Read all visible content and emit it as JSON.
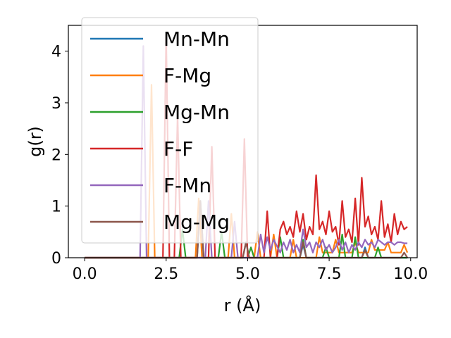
{
  "chart_data": {
    "type": "line",
    "xlabel": "r (Å)",
    "ylabel": "g(r)",
    "xlim": [
      -0.5,
      10.2
    ],
    "ylim": [
      0,
      4.5
    ],
    "x_ticks": [
      0.0,
      2.5,
      5.0,
      7.5,
      10.0
    ],
    "x_tick_labels": [
      "0.0",
      "2.5",
      "5.0",
      "7.5",
      "10.0"
    ],
    "y_ticks": [
      0,
      1,
      2,
      3,
      4
    ],
    "y_tick_labels": [
      "0",
      "1",
      "2",
      "3",
      "4"
    ],
    "grid": false,
    "legend_position": "upper left",
    "series": [
      {
        "name": "Mn-Mn",
        "color": "#1f77b4",
        "x": [
          0.0,
          3.45,
          3.55,
          3.65,
          4.85,
          4.95,
          5.05,
          6.6,
          6.7,
          6.8,
          8.5,
          8.6,
          8.7,
          9.9
        ],
        "y": [
          0,
          0,
          1.1,
          0,
          0,
          0.3,
          0,
          0,
          0.25,
          0,
          0,
          0.2,
          0,
          0
        ]
      },
      {
        "name": "F-Mg",
        "color": "#ff7f0e",
        "x": [
          0.0,
          1.95,
          2.05,
          2.15,
          3.4,
          3.5,
          3.6,
          4.4,
          4.5,
          4.6,
          5.2,
          5.3,
          5.4,
          5.7,
          5.8,
          5.9,
          6.3,
          6.4,
          6.5,
          7.1,
          7.2,
          7.3,
          7.6,
          7.7,
          7.8,
          8.2,
          8.3,
          8.4,
          8.7,
          8.8,
          8.9,
          9.2,
          9.3,
          9.4,
          9.7,
          9.8,
          9.9
        ],
        "y": [
          0,
          0,
          3.35,
          0,
          0,
          1.15,
          0,
          0,
          0.85,
          0,
          0,
          0.5,
          0,
          0,
          0.45,
          0,
          0,
          0.35,
          0,
          0,
          0.4,
          0.1,
          0.1,
          0.35,
          0.1,
          0.1,
          0.3,
          0.1,
          0.1,
          0.35,
          0.15,
          0.15,
          0.3,
          0.1,
          0.1,
          0.25,
          0.1
        ]
      },
      {
        "name": "Mg-Mn",
        "color": "#2ca02c",
        "x": [
          0.0,
          2.9,
          3.0,
          3.1,
          4.1,
          4.2,
          4.3,
          5.0,
          5.1,
          5.2,
          5.9,
          6.0,
          6.1,
          6.6,
          6.7,
          6.8,
          7.3,
          7.4,
          7.5,
          7.8,
          7.9,
          8.0,
          8.2,
          8.3,
          8.4,
          8.9,
          9.0,
          9.1,
          9.9
        ],
        "y": [
          0,
          0,
          0.55,
          0,
          0,
          0.5,
          0,
          0,
          0.2,
          0,
          0,
          0.4,
          0,
          0,
          0.35,
          0,
          0,
          0.2,
          0,
          0,
          0.45,
          0,
          0,
          0.4,
          0,
          0,
          0.2,
          0,
          0
        ]
      },
      {
        "name": "F-F",
        "color": "#d62728",
        "x": [
          0.0,
          2.4,
          2.5,
          2.6,
          2.75,
          2.85,
          2.95,
          3.8,
          3.9,
          4.0,
          4.8,
          4.9,
          5.0,
          5.5,
          5.6,
          5.7,
          5.9,
          6.0,
          6.1,
          6.2,
          6.3,
          6.4,
          6.5,
          6.6,
          6.7,
          6.8,
          6.9,
          7.0,
          7.1,
          7.2,
          7.3,
          7.4,
          7.5,
          7.6,
          7.7,
          7.8,
          7.9,
          8.0,
          8.1,
          8.2,
          8.3,
          8.4,
          8.5,
          8.6,
          8.7,
          8.8,
          8.9,
          9.0,
          9.1,
          9.2,
          9.3,
          9.4,
          9.5,
          9.6,
          9.7,
          9.8,
          9.9
        ],
        "y": [
          0,
          0,
          4.3,
          0,
          0,
          2.75,
          0,
          0,
          2.15,
          0,
          0,
          2.3,
          0,
          0,
          0.9,
          0,
          0,
          0.55,
          0.7,
          0.45,
          0.6,
          0.4,
          0.9,
          0.5,
          0.85,
          0.35,
          0.6,
          0.45,
          1.6,
          0.55,
          0.7,
          0.45,
          0.9,
          0.5,
          0.6,
          0.25,
          1.1,
          0.4,
          0.55,
          0.3,
          1.15,
          0.25,
          1.55,
          0.6,
          0.8,
          0.45,
          0.6,
          0.35,
          1.1,
          0.4,
          0.65,
          0.3,
          0.85,
          0.45,
          0.7,
          0.55,
          0.6
        ]
      },
      {
        "name": "F-Mn",
        "color": "#9467bd",
        "x": [
          0.0,
          1.7,
          1.8,
          1.9,
          3.7,
          3.8,
          3.9,
          4.5,
          4.6,
          4.7,
          5.3,
          5.4,
          5.5,
          5.6,
          5.7,
          5.8,
          6.0,
          6.1,
          6.2,
          6.3,
          6.4,
          6.5,
          6.6,
          6.7,
          6.8,
          6.9,
          7.0,
          7.1,
          7.2,
          7.3,
          7.4,
          7.5,
          7.6,
          7.7,
          7.8,
          7.9,
          8.0,
          8.1,
          8.2,
          8.3,
          8.4,
          8.5,
          8.6,
          8.7,
          8.8,
          8.9,
          9.0,
          9.1,
          9.2,
          9.3,
          9.4,
          9.5,
          9.6,
          9.7,
          9.8,
          9.9
        ],
        "y": [
          0,
          0,
          4.1,
          0,
          0,
          1.1,
          0,
          0,
          0.7,
          0,
          0,
          0.45,
          0.1,
          0.4,
          0.15,
          0.35,
          0.1,
          0.3,
          0.15,
          0.35,
          0.1,
          0.25,
          0.1,
          0.55,
          0.2,
          0.3,
          0.1,
          0.3,
          0.2,
          0.35,
          0.15,
          0.25,
          0.1,
          0.2,
          0.35,
          0.15,
          0.3,
          0.1,
          0.25,
          0.15,
          0.3,
          0.2,
          0.35,
          0.25,
          0.3,
          0.2,
          0.35,
          0.3,
          0.25,
          0.3,
          0.3,
          0.25,
          0.3,
          0.3,
          0.28,
          0.28
        ]
      },
      {
        "name": "Mg-Mg",
        "color": "#8c564b",
        "x": [
          0.0,
          3.45,
          3.55,
          3.65,
          4.85,
          4.95,
          5.05,
          6.6,
          6.7,
          6.8,
          8.5,
          8.6,
          8.7,
          9.7,
          9.8,
          9.9
        ],
        "y": [
          0,
          0,
          1.1,
          0,
          0,
          0.3,
          0,
          0,
          0.3,
          0,
          0,
          0.15,
          0,
          0,
          0.1,
          0
        ]
      }
    ]
  }
}
